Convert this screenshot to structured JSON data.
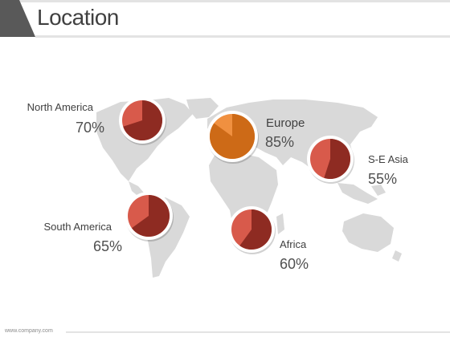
{
  "title": "Location",
  "footer": "www.company.com",
  "colors": {
    "pie_main": "#8e2b22",
    "pie_light": "#d85a4b",
    "pie_orange_main": "#cd6a17",
    "pie_orange_light": "#f09040",
    "map": "#d9d9d9"
  },
  "chart_data": {
    "type": "pie",
    "title": "Location",
    "regions": [
      {
        "name": "North America",
        "value": 70,
        "label": "70%"
      },
      {
        "name": "Europe",
        "value": 85,
        "label": "85%"
      },
      {
        "name": "S-E Asia",
        "value": 55,
        "label": "55%"
      },
      {
        "name": "South America",
        "value": 65,
        "label": "65%"
      },
      {
        "name": "Africa",
        "value": 60,
        "label": "60%"
      }
    ]
  }
}
